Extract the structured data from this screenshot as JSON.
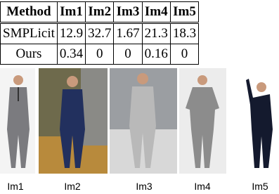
{
  "table": {
    "header": [
      "Method",
      "Im1",
      "Im2",
      "Im3",
      "Im4",
      "Im5"
    ],
    "rows": [
      [
        "SMPLicit",
        "12.9",
        "32.7",
        "1.67",
        "21.3",
        "18.3"
      ],
      [
        "Ours",
        "0.34",
        "0",
        "0",
        "0.16",
        "0"
      ]
    ]
  },
  "images": {
    "labels": [
      "Im1",
      "Im2",
      "Im3",
      "Im4",
      "Im5"
    ]
  }
}
